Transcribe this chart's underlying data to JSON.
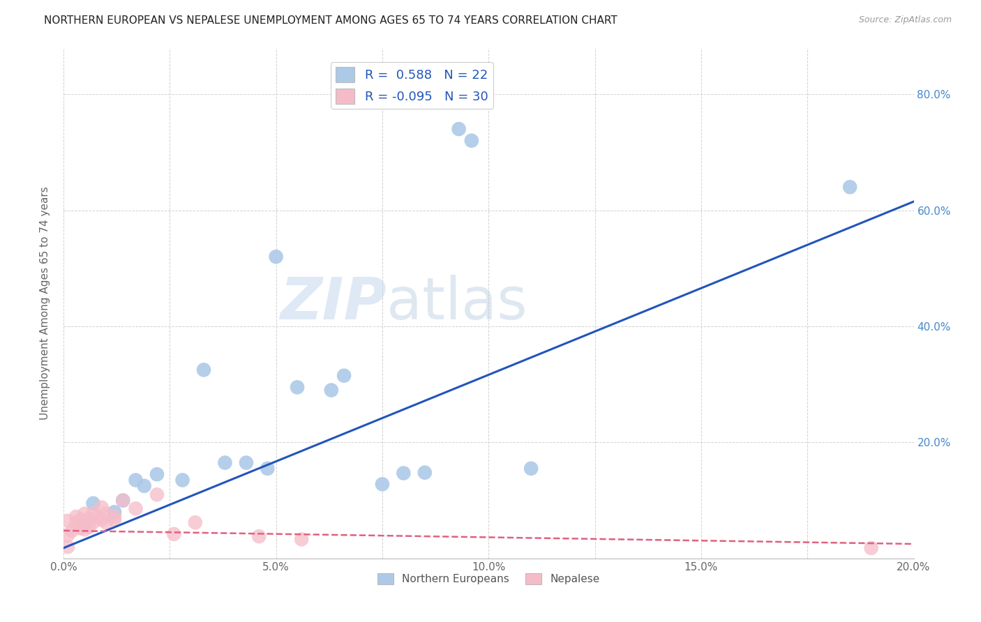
{
  "title": "NORTHERN EUROPEAN VS NEPALESE UNEMPLOYMENT AMONG AGES 65 TO 74 YEARS CORRELATION CHART",
  "source": "Source: ZipAtlas.com",
  "ylabel": "Unemployment Among Ages 65 to 74 years",
  "xlim": [
    0.0,
    0.2
  ],
  "ylim": [
    0.0,
    0.88
  ],
  "legend_bottom": [
    "Northern Europeans",
    "Nepalese"
  ],
  "blue_R": "0.588",
  "blue_N": "22",
  "pink_R": "-0.095",
  "pink_N": "30",
  "blue_color": "#adc9e8",
  "pink_color": "#f5bcc8",
  "blue_line_color": "#2255bb",
  "pink_line_color": "#e06080",
  "watermark_zip": "ZIP",
  "watermark_atlas": "atlas",
  "blue_line_x": [
    0.0,
    0.2
  ],
  "blue_line_y": [
    0.018,
    0.615
  ],
  "pink_line_x": [
    0.0,
    0.2
  ],
  "pink_line_y": [
    0.048,
    0.025
  ],
  "blue_points_x": [
    0.007,
    0.012,
    0.014,
    0.017,
    0.019,
    0.022,
    0.028,
    0.033,
    0.038,
    0.043,
    0.048,
    0.05,
    0.055,
    0.063,
    0.066,
    0.075,
    0.08,
    0.085,
    0.093,
    0.096,
    0.11,
    0.185
  ],
  "blue_points_y": [
    0.095,
    0.08,
    0.1,
    0.135,
    0.125,
    0.145,
    0.135,
    0.325,
    0.165,
    0.165,
    0.155,
    0.52,
    0.295,
    0.29,
    0.315,
    0.128,
    0.147,
    0.148,
    0.74,
    0.72,
    0.155,
    0.64
  ],
  "pink_points_x": [
    0.001,
    0.001,
    0.001,
    0.002,
    0.003,
    0.003,
    0.004,
    0.004,
    0.005,
    0.005,
    0.005,
    0.006,
    0.006,
    0.007,
    0.007,
    0.008,
    0.009,
    0.009,
    0.01,
    0.01,
    0.012,
    0.012,
    0.014,
    0.017,
    0.022,
    0.026,
    0.031,
    0.046,
    0.056,
    0.19
  ],
  "pink_points_y": [
    0.02,
    0.04,
    0.065,
    0.048,
    0.06,
    0.072,
    0.052,
    0.067,
    0.062,
    0.077,
    0.05,
    0.054,
    0.068,
    0.062,
    0.078,
    0.072,
    0.067,
    0.088,
    0.062,
    0.077,
    0.067,
    0.072,
    0.1,
    0.086,
    0.11,
    0.042,
    0.062,
    0.038,
    0.033,
    0.018
  ]
}
